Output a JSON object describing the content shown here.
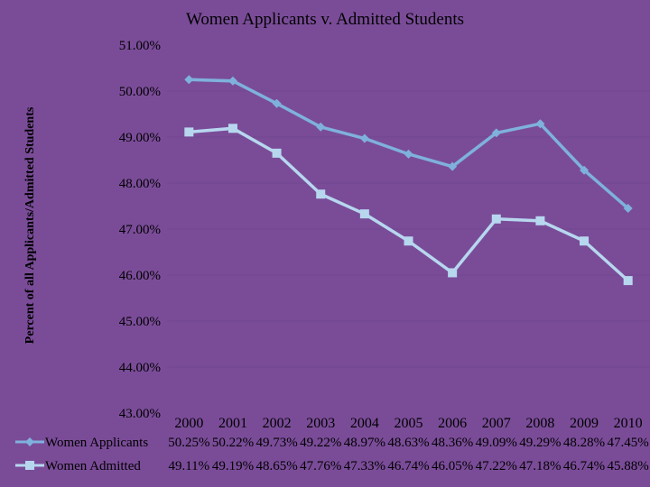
{
  "colors": {
    "background": "#7a4c98",
    "applicants_line": "#7fb1dd",
    "admitted_line": "#b7d7ef",
    "gridline": "#5a3578",
    "text": "#000000"
  },
  "chart_data": {
    "type": "line",
    "title": "Women Applicants v. Admitted Students",
    "ylabel": "Percent of all Applicants/Admitted Students",
    "xlabel": "",
    "categories": [
      "2000",
      "2001",
      "2002",
      "2003",
      "2004",
      "2005",
      "2006",
      "2007",
      "2008",
      "2009",
      "2010"
    ],
    "ylim": [
      43.0,
      51.0
    ],
    "ytick_labels": [
      "51.00%",
      "50.00%",
      "49.00%",
      "48.00%",
      "47.00%",
      "46.00%",
      "45.00%",
      "44.00%",
      "43.00%"
    ],
    "grid": true,
    "legend_placement": "bottom data table",
    "series": [
      {
        "name": "Women Applicants",
        "marker": "diamond",
        "values": [
          50.25,
          50.22,
          49.73,
          49.22,
          48.97,
          48.63,
          48.36,
          49.09,
          49.29,
          48.28,
          47.45
        ],
        "labels": [
          "50.25%",
          "50.22%",
          "49.73%",
          "49.22%",
          "48.97%",
          "48.63%",
          "48.36%",
          "49.09%",
          "49.29%",
          "48.28%",
          "47.45%"
        ]
      },
      {
        "name": "Women Admitted",
        "marker": "square",
        "values": [
          49.11,
          49.19,
          48.65,
          47.76,
          47.33,
          46.74,
          46.05,
          47.22,
          47.18,
          46.74,
          45.88
        ],
        "labels": [
          "49.11%",
          "49.19%",
          "48.65%",
          "47.76%",
          "47.33%",
          "46.74%",
          "46.05%",
          "47.22%",
          "47.18%",
          "46.74%",
          "45.88%"
        ]
      }
    ]
  }
}
